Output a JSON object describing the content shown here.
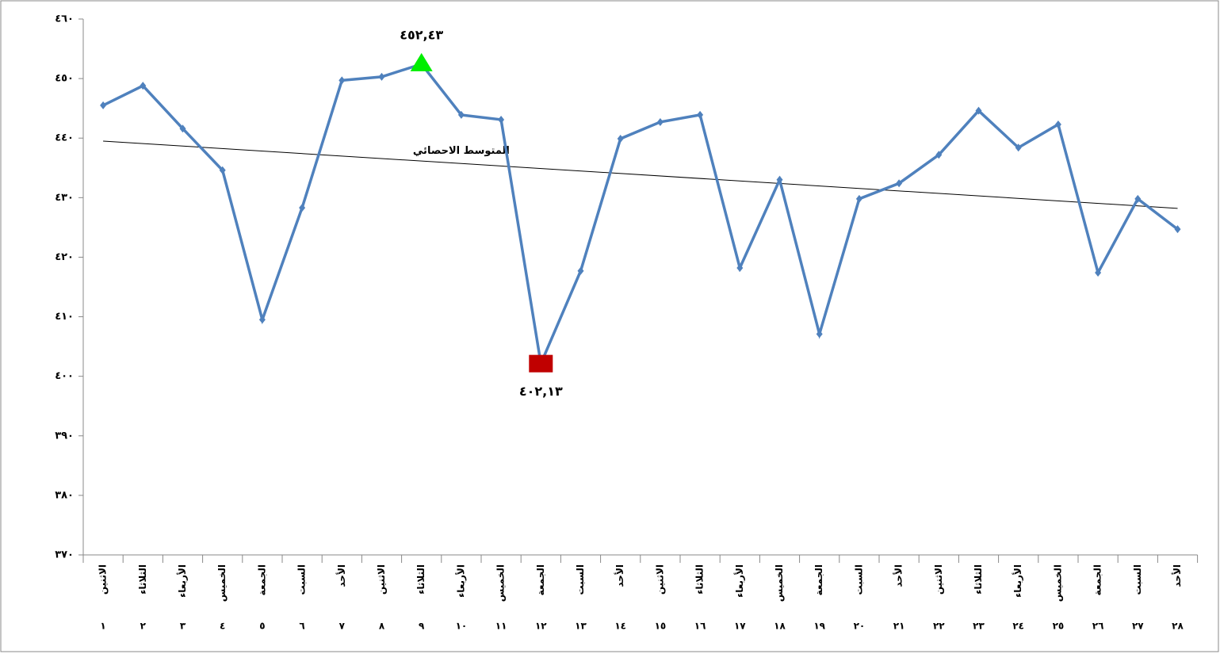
{
  "chart_data": {
    "type": "line",
    "categories": [
      "الاثنين",
      "الثلاثاء",
      "الأربعاء",
      "الخميس",
      "الجمعة",
      "السبت",
      "الأحد",
      "الاثنين",
      "الثلاثاء",
      "الأربعاء",
      "الخميس",
      "الجمعة",
      "السبت",
      "الأحد",
      "الاثنين",
      "الثلاثاء",
      "الأربعاء",
      "الخميس",
      "الجمعة",
      "السبت",
      "الأحد",
      "الاثنين",
      "الثلاثاء",
      "الأربعاء",
      "الخميس",
      "الجمعة",
      "السبت",
      "الأحد"
    ],
    "days": [
      "١",
      "٢",
      "٣",
      "٤",
      "٥",
      "٦",
      "٧",
      "٨",
      "٩",
      "١٠",
      "١١",
      "١٢",
      "١٣",
      "١٤",
      "١٥",
      "١٦",
      "١٧",
      "١٨",
      "١٩",
      "٢٠",
      "٢١",
      "٢٢",
      "٢٣",
      "٢٤",
      "٢٥",
      "٢٦",
      "٢٧",
      "٢٨"
    ],
    "series": [
      {
        "color": "#4f81bd",
        "values": [
          445.5,
          448.8,
          441.6,
          434.6,
          409.5,
          428.3,
          449.7,
          450.3,
          452.43,
          443.9,
          443.1,
          402.13,
          417.7,
          439.9,
          442.7,
          443.9,
          418.2,
          433.0,
          407.1,
          429.8,
          432.4,
          437.2,
          444.6,
          438.4,
          442.3,
          417.4,
          429.8,
          424.7
        ]
      }
    ],
    "trendline": {
      "label": "المتوسط الاحصائي",
      "start": 439.5,
      "end": 428.2,
      "color": "#000000"
    },
    "max_label": "٤٥٢,٤٣",
    "max_color": "#00ee00",
    "min_label": "٤٠٢,١٣",
    "min_color": "#c00000",
    "ylim": [
      370,
      460
    ],
    "yticks": [
      {
        "value": 370,
        "label": "٣٧٠"
      },
      {
        "value": 380,
        "label": "٣٨٠"
      },
      {
        "value": 390,
        "label": "٣٩٠"
      },
      {
        "value": 400,
        "label": "٤٠٠"
      },
      {
        "value": 410,
        "label": "٤١٠"
      },
      {
        "value": 420,
        "label": "٤٢٠"
      },
      {
        "value": 430,
        "label": "٤٣٠"
      },
      {
        "value": 440,
        "label": "٤٤٠"
      },
      {
        "value": 450,
        "label": "٤٥٠"
      },
      {
        "value": 460,
        "label": "٤٦٠"
      }
    ],
    "grid": false
  }
}
